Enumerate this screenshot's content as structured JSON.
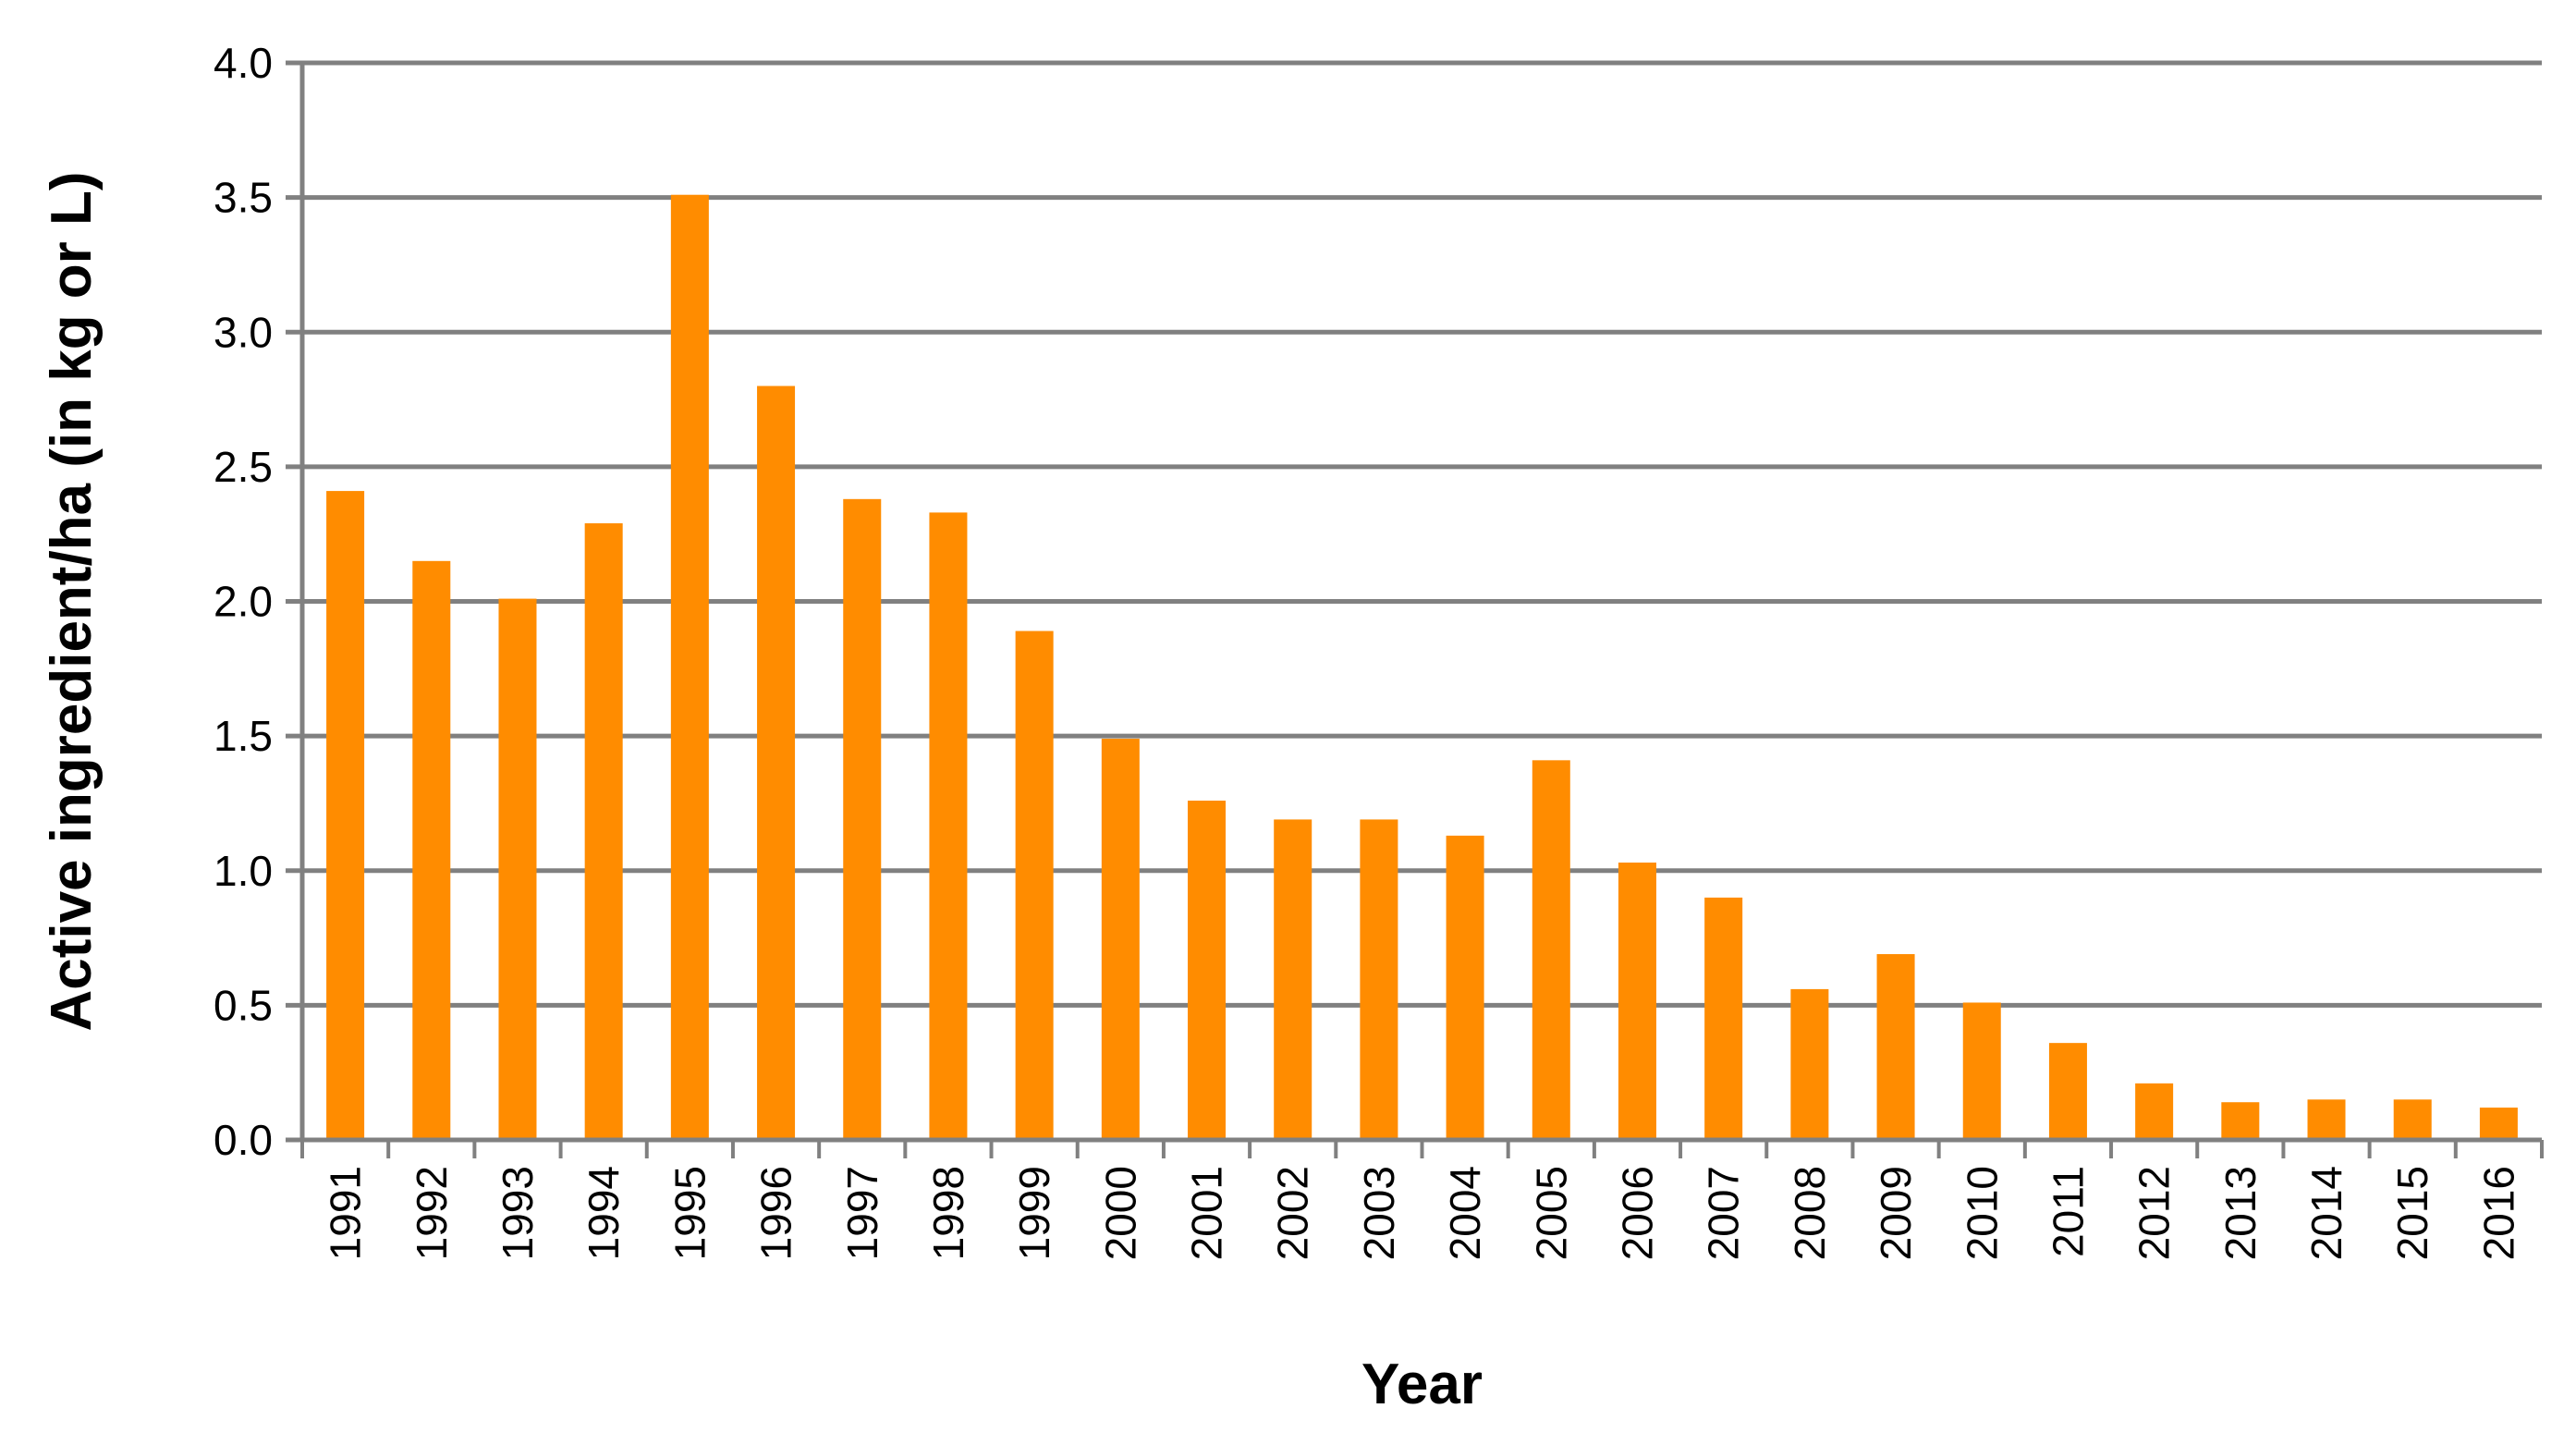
{
  "chart_data": {
    "type": "bar",
    "title": "",
    "xlabel": "Year",
    "ylabel": "Active ingredient/ha (in kg or L)",
    "ylim": [
      0,
      4.0
    ],
    "yticks": [
      "0.0",
      "0.5",
      "1.0",
      "1.5",
      "2.0",
      "2.5",
      "3.0",
      "3.5",
      "4.0"
    ],
    "grid": true,
    "legend": "none",
    "bar_color": "#FF8C00",
    "categories": [
      "1991",
      "1992",
      "1993",
      "1994",
      "1995",
      "1996",
      "1997",
      "1998",
      "1999",
      "2000",
      "2001",
      "2002",
      "2003",
      "2004",
      "2005",
      "2006",
      "2007",
      "2008",
      "2009",
      "2010",
      "2011",
      "2012",
      "2013",
      "2014",
      "2015",
      "2016"
    ],
    "values": [
      2.41,
      2.15,
      2.01,
      2.29,
      3.51,
      2.8,
      2.38,
      2.33,
      1.89,
      1.49,
      1.26,
      1.19,
      1.19,
      1.13,
      1.41,
      1.03,
      0.9,
      0.56,
      0.69,
      0.51,
      0.36,
      0.21,
      0.14,
      0.15,
      0.15,
      0.12
    ]
  }
}
